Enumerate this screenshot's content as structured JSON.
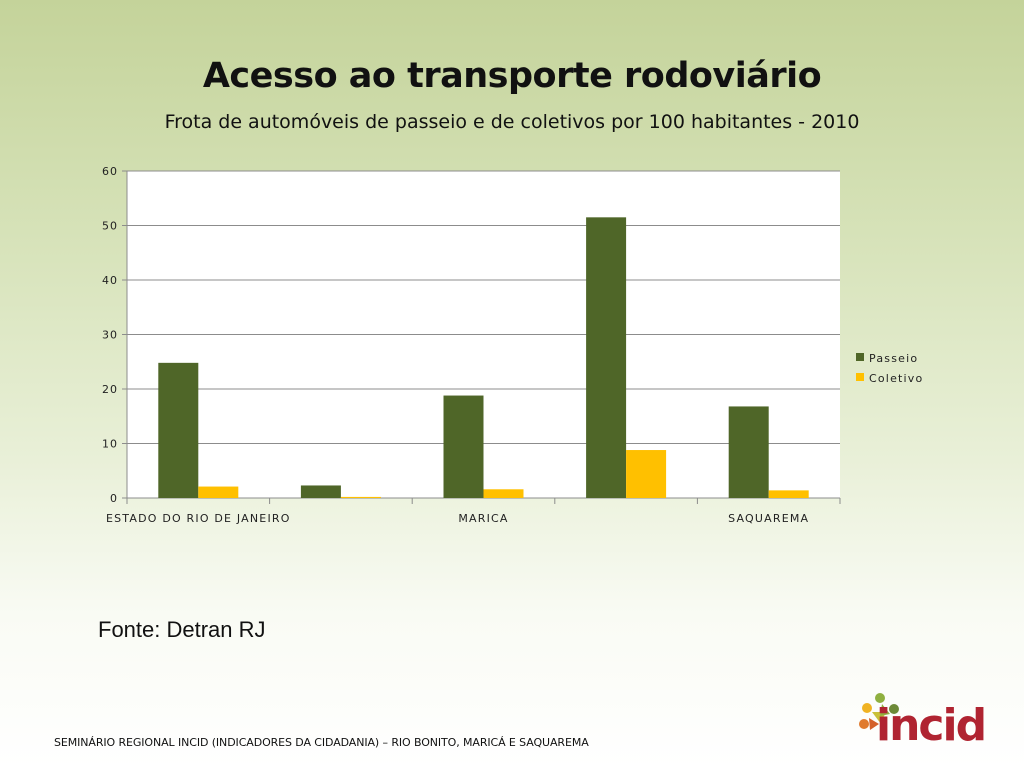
{
  "slide": {
    "title": "Acesso ao transporte rodoviário",
    "subtitle": "Frota de automóveis de passeio e de coletivos por 100 habitantes - 2010",
    "source": "Fonte: Detran RJ",
    "footer": "SEMINÁRIO REGIONAL INCID (INDICADORES DA CIDADANIA) – RIO BONITO, MARICÁ E SAQUAREMA",
    "logo_text": "incid"
  },
  "chart_data": {
    "type": "bar",
    "title": "",
    "xlabel": "",
    "ylabel": "",
    "categories": [
      "ESTADO DO RIO DE JANEIRO",
      "",
      "MARICA",
      "",
      "SAQUAREMA"
    ],
    "series": [
      {
        "name": "Passeio",
        "color": "#4f6628",
        "values": [
          24.8,
          2.3,
          18.8,
          51.5,
          16.8
        ]
      },
      {
        "name": "Coletivo",
        "color": "#ffc000",
        "values": [
          2.1,
          0.2,
          1.6,
          8.8,
          1.4
        ]
      }
    ],
    "ylim": [
      0,
      60
    ],
    "yticks": [
      0,
      10,
      20,
      30,
      40,
      50,
      60
    ],
    "grid": true,
    "legend_position": "right"
  },
  "colors": {
    "plot_background": "#ffffff",
    "gridline": "#8c8c8c",
    "logo_red": "#b02431"
  }
}
